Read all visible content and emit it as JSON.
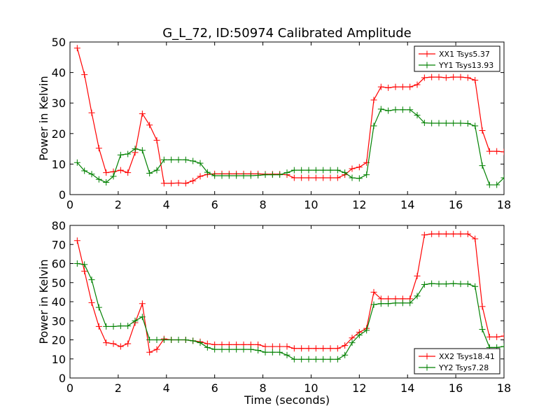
{
  "figure": {
    "title": "G_L_72, ID:50974 Calibrated Amplitude",
    "xlabel": "Time (seconds)"
  },
  "chart_data": [
    {
      "type": "line",
      "title": "G_L_72, ID:50974 Calibrated Amplitude",
      "xlabel": "",
      "ylabel": "Power in Kelvin",
      "xlim": [
        0,
        18
      ],
      "ylim": [
        0,
        50
      ],
      "xticks": [
        "0",
        "2",
        "4",
        "6",
        "8",
        "10",
        "12",
        "14",
        "16",
        "18"
      ],
      "yticks": [
        "0",
        "10",
        "20",
        "30",
        "40",
        "50"
      ],
      "legend_position": "top-right",
      "marker": "+",
      "x": [
        0.3,
        0.6,
        0.9,
        1.2,
        1.5,
        1.8,
        2.1,
        2.4,
        2.7,
        3.0,
        3.3,
        3.6,
        3.9,
        4.2,
        4.5,
        4.8,
        5.1,
        5.4,
        5.7,
        6.0,
        6.3,
        6.6,
        6.9,
        7.2,
        7.5,
        7.8,
        8.1,
        8.4,
        8.7,
        9.0,
        9.3,
        9.6,
        9.9,
        10.2,
        10.5,
        10.8,
        11.1,
        11.4,
        11.7,
        12.0,
        12.3,
        12.6,
        12.9,
        13.2,
        13.5,
        13.8,
        14.1,
        14.4,
        14.7,
        15.0,
        15.3,
        15.6,
        15.9,
        16.2,
        16.5,
        16.8,
        17.1,
        17.4,
        17.7,
        18.0
      ],
      "series": [
        {
          "name": "XX1 Tsys5.37",
          "color": "#ff0000",
          "values": [
            48.0,
            39.3,
            26.8,
            15.2,
            7.2,
            7.5,
            8.0,
            7.2,
            13.8,
            26.5,
            22.8,
            17.8,
            3.7,
            3.7,
            3.8,
            3.7,
            4.5,
            6.0,
            6.6,
            6.8,
            6.8,
            6.8,
            6.8,
            6.8,
            6.8,
            6.8,
            6.7,
            6.7,
            6.7,
            6.5,
            5.5,
            5.5,
            5.5,
            5.5,
            5.5,
            5.5,
            5.5,
            6.5,
            8.5,
            9.0,
            10.5,
            31.0,
            35.3,
            35.0,
            35.3,
            35.3,
            35.3,
            36.0,
            38.3,
            38.5,
            38.5,
            38.3,
            38.5,
            38.5,
            38.3,
            37.5,
            21.0,
            14.2,
            14.2,
            14.0
          ]
        },
        {
          "name": "YY1 Tsys13.93",
          "color": "#008000",
          "values": [
            10.5,
            7.8,
            6.7,
            5.0,
            4.0,
            6.0,
            13.0,
            13.3,
            15.0,
            14.5,
            7.0,
            8.0,
            11.4,
            11.4,
            11.4,
            11.4,
            11.0,
            10.3,
            7.3,
            6.2,
            6.2,
            6.2,
            6.2,
            6.2,
            6.2,
            6.3,
            6.5,
            6.5,
            6.5,
            7.2,
            8.0,
            8.0,
            8.0,
            8.0,
            8.0,
            8.0,
            8.0,
            7.2,
            5.5,
            5.3,
            6.5,
            22.5,
            28.0,
            27.5,
            27.8,
            27.8,
            27.8,
            26.0,
            23.5,
            23.4,
            23.4,
            23.4,
            23.4,
            23.4,
            23.3,
            22.5,
            9.5,
            3.2,
            3.2,
            5.5
          ]
        }
      ]
    },
    {
      "type": "line",
      "title": "",
      "xlabel": "Time (seconds)",
      "ylabel": "Power in Kelvin",
      "xlim": [
        0,
        18
      ],
      "ylim": [
        0,
        80
      ],
      "xticks": [
        "0",
        "2",
        "4",
        "6",
        "8",
        "10",
        "12",
        "14",
        "16",
        "18"
      ],
      "yticks": [
        "0",
        "10",
        "20",
        "30",
        "40",
        "50",
        "60",
        "70",
        "80"
      ],
      "legend_position": "bottom-right",
      "marker": "+",
      "x": [
        0.3,
        0.6,
        0.9,
        1.2,
        1.5,
        1.8,
        2.1,
        2.4,
        2.7,
        3.0,
        3.3,
        3.6,
        3.9,
        4.2,
        4.5,
        4.8,
        5.1,
        5.4,
        5.7,
        6.0,
        6.3,
        6.6,
        6.9,
        7.2,
        7.5,
        7.8,
        8.1,
        8.4,
        8.7,
        9.0,
        9.3,
        9.6,
        9.9,
        10.2,
        10.5,
        10.8,
        11.1,
        11.4,
        11.7,
        12.0,
        12.3,
        12.6,
        12.9,
        13.2,
        13.5,
        13.8,
        14.1,
        14.4,
        14.7,
        15.0,
        15.3,
        15.6,
        15.9,
        16.2,
        16.5,
        16.8,
        17.1,
        17.4,
        17.7,
        18.0
      ],
      "series": [
        {
          "name": "XX2 Tsys18.41",
          "color": "#ff0000",
          "values": [
            72.0,
            56.0,
            39.5,
            27.0,
            18.5,
            18.0,
            16.5,
            18.0,
            29.0,
            39.0,
            13.5,
            15.0,
            20.5,
            20.0,
            20.0,
            20.0,
            19.5,
            19.0,
            18.0,
            17.5,
            17.5,
            17.5,
            17.5,
            17.5,
            17.5,
            17.5,
            16.5,
            16.5,
            16.5,
            16.5,
            15.5,
            15.5,
            15.5,
            15.5,
            15.5,
            15.5,
            15.5,
            17.0,
            21.0,
            24.0,
            26.0,
            45.0,
            41.5,
            41.5,
            41.5,
            41.5,
            41.5,
            53.5,
            75.0,
            75.5,
            75.5,
            75.5,
            75.5,
            75.5,
            75.5,
            73.0,
            37.5,
            21.5,
            21.5,
            22.0
          ]
        },
        {
          "name": "YY2 Tsys7.28",
          "color": "#008000",
          "values": [
            60.0,
            59.5,
            51.5,
            37.0,
            27.0,
            27.0,
            27.3,
            27.3,
            30.0,
            32.0,
            20.0,
            20.0,
            20.0,
            20.0,
            20.0,
            20.0,
            19.5,
            18.5,
            16.0,
            15.0,
            15.0,
            15.0,
            15.0,
            15.0,
            15.0,
            14.5,
            13.5,
            13.5,
            13.5,
            12.0,
            9.8,
            9.8,
            9.8,
            9.8,
            9.8,
            9.8,
            9.8,
            12.0,
            18.5,
            22.5,
            25.0,
            38.5,
            39.0,
            39.0,
            39.3,
            39.3,
            39.3,
            43.0,
            49.0,
            49.5,
            49.3,
            49.3,
            49.5,
            49.3,
            49.3,
            48.0,
            25.5,
            16.0,
            16.0,
            16.5
          ]
        }
      ]
    }
  ]
}
